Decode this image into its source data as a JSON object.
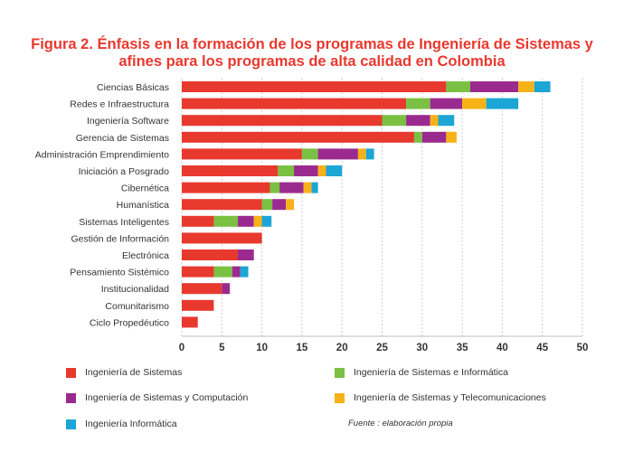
{
  "title": {
    "line1": "Figura 2. Énfasis en la formación de los programas de Ingeniería de Sistemas y",
    "line2": "afines para los programas de alta calidad en Colombia"
  },
  "source_note": "Fuente : elaboración propia",
  "chart_data": {
    "type": "bar",
    "orientation": "horizontal",
    "stacked": true,
    "categories": [
      "Ciencias Básicas",
      "Redes e Infraestructura",
      "Ingeniería Software",
      "Gerencia de Sistemas",
      "Administración Emprendimiento",
      "Iniciación a Posgrado",
      "Cibernética",
      "Humanística",
      "Sistemas Inteligentes",
      "Gestión de Información",
      "Electrónica",
      "Pensamiento Sistémico",
      "Institucionalidad",
      "Comunitarismo",
      "Ciclo Propedéutico"
    ],
    "series": [
      {
        "name": "Ingeniería de Sistemas",
        "color": "#e8392f",
        "values": [
          33,
          28,
          25,
          29,
          15,
          12,
          11,
          10,
          4,
          10,
          7,
          4,
          5,
          4,
          2
        ]
      },
      {
        "name": "Ingeniería de Sistemas e Informática",
        "color": "#7ac143",
        "values": [
          3,
          3,
          3,
          1,
          2,
          2,
          1.2,
          1.3,
          3,
          0,
          0,
          2.3,
          0,
          0,
          0
        ]
      },
      {
        "name": "Ingeniería de Sistemas y Computación",
        "color": "#9b2a8e",
        "values": [
          6,
          4,
          3,
          3,
          5,
          3,
          3,
          1.7,
          2,
          0,
          2,
          1,
          1,
          0,
          0
        ]
      },
      {
        "name": "Ingeniería de Sistemas y Telecomunicaciones",
        "color": "#f7b218",
        "values": [
          2,
          3,
          1,
          1.3,
          1,
          1,
          1,
          1,
          1,
          0,
          0,
          0,
          0,
          0,
          0
        ]
      },
      {
        "name": "Ingeniería Informática",
        "color": "#1ba6d6",
        "values": [
          2,
          4,
          2,
          0,
          1,
          2,
          0.8,
          0,
          1.2,
          0,
          0,
          1,
          0,
          0,
          0
        ]
      }
    ],
    "xlim": [
      0,
      50
    ],
    "xticks": [
      0,
      5,
      10,
      15,
      20,
      25,
      30,
      35,
      40,
      45,
      50
    ],
    "grid": "vertical dashed",
    "legend": "bottom"
  }
}
